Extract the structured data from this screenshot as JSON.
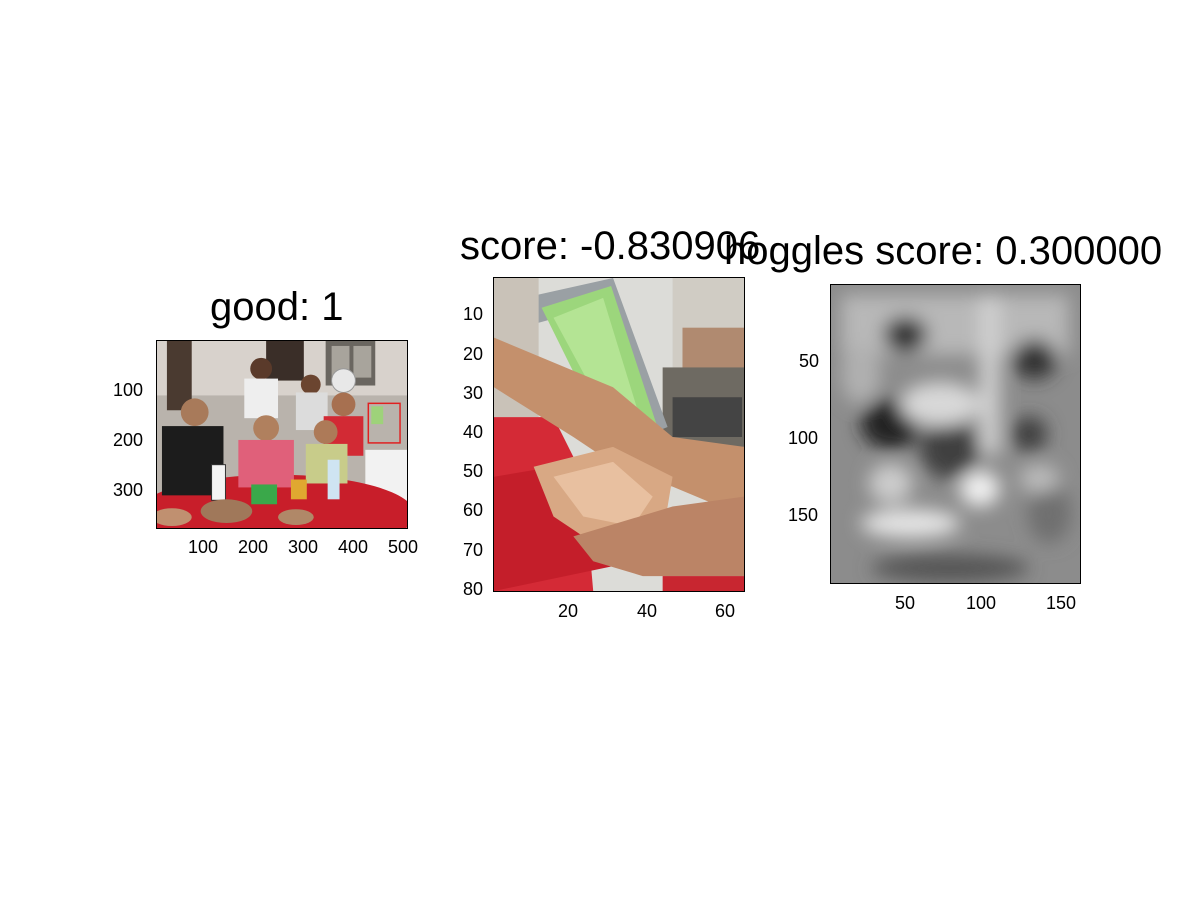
{
  "panels": [
    {
      "title": "good: 1",
      "x_ticks": [
        "100",
        "200",
        "300",
        "400",
        "500"
      ],
      "y_ticks": [
        "100",
        "200",
        "300"
      ]
    },
    {
      "title": "score: -0.830906",
      "x_ticks": [
        "20",
        "40",
        "60"
      ],
      "y_ticks": [
        "10",
        "20",
        "30",
        "40",
        "50",
        "60",
        "70",
        "80"
      ]
    },
    {
      "title": "hoggles score: 0.300000",
      "x_ticks": [
        "50",
        "100",
        "150"
      ],
      "y_ticks": [
        "50",
        "100",
        "150"
      ]
    }
  ],
  "colors": {
    "detection_box": "#e02020",
    "ticks": "#000000"
  }
}
